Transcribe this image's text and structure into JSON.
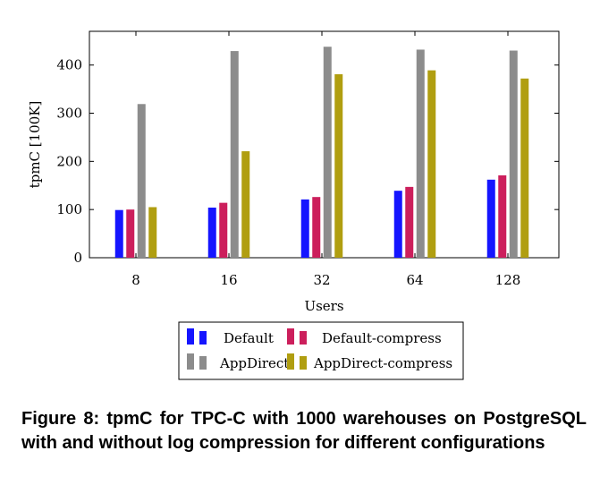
{
  "chart_data": {
    "type": "bar",
    "title": "",
    "xlabel": "Users",
    "ylabel": "tpmC [100K]",
    "categories": [
      "8",
      "16",
      "32",
      "64",
      "128"
    ],
    "ylim": [
      0,
      470
    ],
    "yticks": [
      0,
      100,
      200,
      300,
      400
    ],
    "grid": false,
    "legend_position": "bottom",
    "series": [
      {
        "name": "Default",
        "color": "#1515ff",
        "values": [
          99,
          104,
          121,
          139,
          162
        ]
      },
      {
        "name": "Default-compress",
        "color": "#cc1f5c",
        "values": [
          100,
          114,
          126,
          147,
          171
        ]
      },
      {
        "name": "AppDirect",
        "color": "#8c8c8c",
        "values": [
          319,
          429,
          438,
          432,
          430
        ]
      },
      {
        "name": "AppDirect-compress",
        "color": "#b09e10",
        "values": [
          105,
          221,
          381,
          389,
          372
        ]
      }
    ]
  },
  "caption": {
    "label": "Figure 8:",
    "text": "tpmC for TPC-C with 1000 warehouses on PostgreSQL with and without log compression for different configurations"
  }
}
